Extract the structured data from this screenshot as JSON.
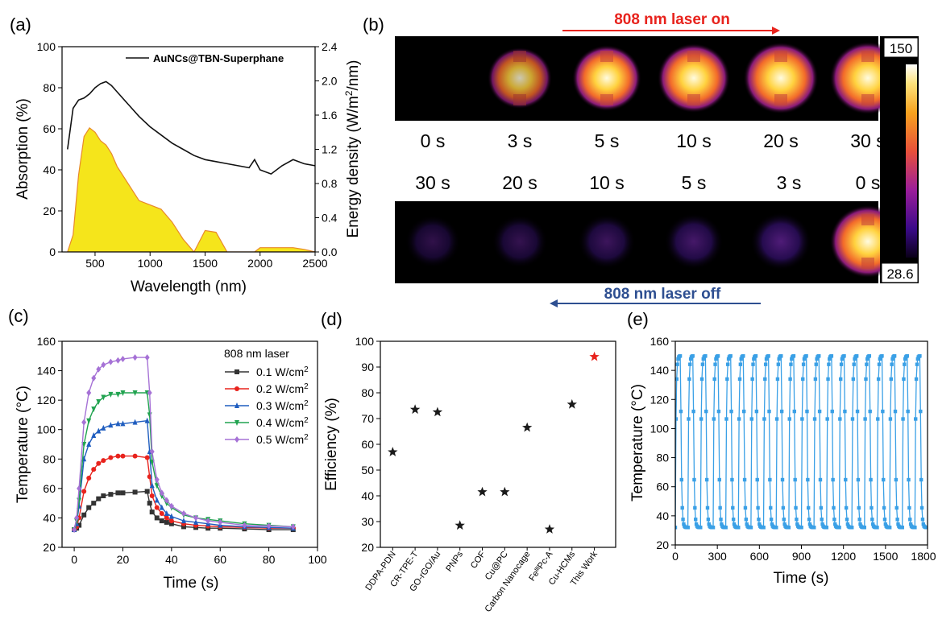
{
  "panels": {
    "a": {
      "letter": "(a)",
      "xlabel": "Wavelength (nm)",
      "ylabel_left": "Absorption (%)",
      "ylabel_right": "Energy density (W/m²/nm)",
      "legend": "AuNCs@TBN-Superphane",
      "xticks": [
        "500",
        "1000",
        "1500",
        "2000",
        "2500"
      ],
      "yticks_left": [
        "0",
        "20",
        "40",
        "60",
        "80",
        "100"
      ],
      "yticks_right": [
        "0.0",
        "0.4",
        "0.8",
        "1.2",
        "1.6",
        "2.0",
        "2.4"
      ]
    },
    "b": {
      "letter": "(b)",
      "laser_on": "808 nm laser on",
      "laser_off": "808 nm laser off",
      "times_on": [
        "0 s",
        "3 s",
        "5 s",
        "10 s",
        "20 s",
        "30 s"
      ],
      "times_off": [
        "30 s",
        "20 s",
        "10 s",
        "5 s",
        "3 s",
        "0 s"
      ],
      "intensity_on": [
        0,
        0.45,
        0.65,
        0.8,
        0.9,
        0.95
      ],
      "intensity_off": [
        0.05,
        0.08,
        0.15,
        0.22,
        0.3,
        0.95
      ],
      "scale_max": "150",
      "scale_min": "28.6"
    },
    "c": {
      "letter": "(c)",
      "legend_title": "808 nm laser",
      "xlabel": "Time (s)",
      "ylabel": "Temperature (°C)",
      "xticks": [
        "0",
        "20",
        "40",
        "60",
        "80",
        "100"
      ],
      "yticks": [
        "20",
        "40",
        "60",
        "80",
        "100",
        "120",
        "140",
        "160"
      ]
    },
    "d": {
      "letter": "(d)",
      "ylabel": "Efficiency (%)",
      "yticks": [
        "20",
        "30",
        "40",
        "50",
        "60",
        "70",
        "80",
        "90",
        "100"
      ]
    },
    "e": {
      "letter": "(e)",
      "xlabel": "Time (s)",
      "ylabel": "Temperature (°C)",
      "xticks": [
        "0",
        "300",
        "600",
        "900",
        "1200",
        "1500",
        "1800"
      ],
      "yticks": [
        "20",
        "40",
        "60",
        "80",
        "100",
        "120",
        "140",
        "160"
      ]
    }
  },
  "chart_data": [
    {
      "type": "line",
      "panel": "a",
      "x": [
        250,
        300,
        350,
        400,
        450,
        500,
        550,
        600,
        650,
        700,
        800,
        900,
        1000,
        1100,
        1200,
        1300,
        1400,
        1500,
        1600,
        1700,
        1800,
        1900,
        1950,
        2000,
        2100,
        2200,
        2300,
        2400,
        2500
      ],
      "series": [
        {
          "name": "AuNCs@TBN-Superphane",
          "axis": "left",
          "values": [
            50,
            70,
            74,
            75,
            77,
            80,
            82,
            83,
            81,
            78,
            72,
            66,
            61,
            57,
            53,
            50,
            47,
            45,
            44,
            43,
            42,
            41,
            45,
            40,
            38,
            42,
            45,
            43,
            42
          ]
        },
        {
          "axis": "right",
          "fill": "#f5e51b",
          "values": [
            0,
            0.2,
            0.9,
            1.35,
            1.45,
            1.4,
            1.3,
            1.25,
            1.15,
            1.0,
            0.8,
            0.6,
            0.55,
            0.5,
            0.35,
            0.15,
            0.0,
            0.25,
            0.23,
            0.0,
            0.0,
            0.0,
            0.0,
            0.05,
            0.05,
            0.05,
            0.05,
            0.03,
            0.0
          ]
        }
      ],
      "xlim": [
        200,
        2500
      ],
      "ylim_left": [
        0,
        100
      ],
      "ylim_right": [
        0,
        2.4
      ]
    },
    {
      "type": "line",
      "panel": "c",
      "x": [
        0,
        1,
        2,
        4,
        6,
        8,
        10,
        12,
        15,
        18,
        20,
        25,
        30,
        31,
        32,
        34,
        36,
        38,
        40,
        45,
        50,
        55,
        60,
        70,
        80,
        90
      ],
      "series": [
        {
          "name": "0.1 W/cm²",
          "color": "#333333",
          "marker": "square",
          "values": [
            32,
            33,
            35,
            42,
            47,
            50,
            53,
            55,
            56,
            57,
            57,
            57.5,
            58,
            50,
            44,
            40,
            38,
            37,
            36,
            34,
            33.5,
            33,
            33,
            32.5,
            32,
            32
          ]
        },
        {
          "name": "0.2 W/cm²",
          "color": "#e8231d",
          "marker": "circle",
          "values": [
            32,
            34,
            40,
            58,
            67,
            73,
            77,
            79,
            81,
            82,
            82,
            82,
            81,
            68,
            55,
            47,
            43,
            40,
            38,
            36,
            35,
            34.5,
            34,
            33.5,
            33,
            33
          ]
        },
        {
          "name": "0.3 W/cm²",
          "color": "#1f5dbf",
          "marker": "triangle-up",
          "values": [
            32,
            36,
            48,
            80,
            90,
            96,
            99,
            101,
            103,
            104,
            104,
            105,
            106,
            85,
            62,
            52,
            47,
            43,
            41,
            38,
            37,
            36,
            35,
            34,
            33.5,
            33
          ]
        },
        {
          "name": "0.4 W/cm²",
          "color": "#21a350",
          "marker": "triangle-down",
          "values": [
            32,
            38,
            52,
            90,
            106,
            114,
            119,
            122,
            124,
            124,
            125,
            125,
            125,
            110,
            78,
            62,
            55,
            50,
            47,
            42,
            40,
            39,
            38,
            36,
            35,
            34
          ]
        },
        {
          "name": "0.5 W/cm²",
          "color": "#a672d6",
          "marker": "diamond",
          "values": [
            32,
            40,
            60,
            105,
            125,
            135,
            141,
            144,
            146,
            147,
            148,
            149,
            149,
            125,
            85,
            66,
            57,
            52,
            48,
            43,
            40,
            38,
            37,
            35,
            34.5,
            34
          ]
        }
      ],
      "xlim": [
        -5,
        100
      ],
      "ylim": [
        20,
        160
      ]
    },
    {
      "type": "scatter",
      "panel": "d",
      "categories": [
        "DDPA-PDN",
        "CR-TPE-T",
        "GO-rGO/Au",
        "PNPs",
        "COF",
        "Cu@PC",
        "Carbon Nanocage",
        "FeᴵᴵᴵPc-A",
        "Cu-HCMs",
        "This Work"
      ],
      "values": [
        57,
        73.5,
        72.5,
        28.5,
        41.5,
        41.5,
        66.5,
        27,
        75.5,
        94
      ],
      "ylim": [
        20,
        100
      ]
    },
    {
      "type": "line",
      "panel": "e",
      "cycles": 20,
      "period_s": 90,
      "ymax": 150,
      "ymin": 32,
      "color": "#3aa0e6",
      "xlim": [
        0,
        1800
      ],
      "ylim": [
        20,
        160
      ]
    }
  ]
}
